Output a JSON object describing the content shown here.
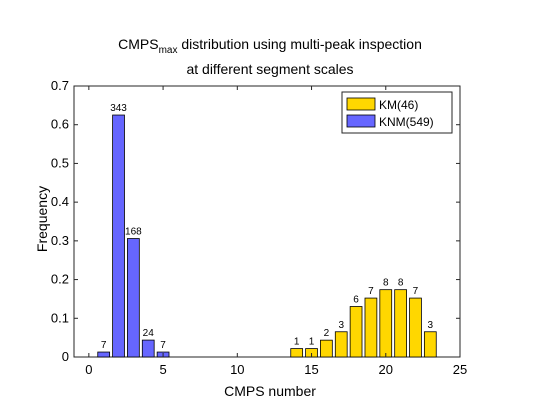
{
  "chart_data": {
    "type": "bar",
    "title_line1_main": "CMPS",
    "title_line1_sub": "max",
    "title_line1_rest": " distribution using multi-peak inspection",
    "title_line2": "at different segment scales",
    "xlabel": "CMPS number",
    "ylabel": "Frequency",
    "xlim": [
      -1,
      25
    ],
    "ylim": [
      0,
      0.7
    ],
    "xticks": [
      "0",
      "5",
      "10",
      "15",
      "20",
      "25"
    ],
    "yticks": [
      "0",
      "0.1",
      "0.2",
      "0.3",
      "0.4",
      "0.5",
      "0.6",
      "0.7"
    ],
    "xtick_values": [
      0,
      5,
      10,
      15,
      20,
      25
    ],
    "ytick_values": [
      0,
      0.1,
      0.2,
      0.3,
      0.4,
      0.5,
      0.6,
      0.7
    ],
    "grid": false,
    "legend_position": "top-right",
    "series": [
      {
        "name": "KNM(549)",
        "color": "#6666ff",
        "x": [
          1,
          2,
          3,
          4,
          5
        ],
        "values": [
          0.0128,
          0.625,
          0.306,
          0.0437,
          0.0128
        ],
        "labels": [
          "7",
          "343",
          "168",
          "24",
          "7"
        ]
      },
      {
        "name": "KM(46)",
        "color": "#ffd700",
        "x": [
          14,
          15,
          16,
          17,
          18,
          19,
          20,
          21,
          22,
          23
        ],
        "values": [
          0.0217,
          0.0217,
          0.0435,
          0.0652,
          0.1304,
          0.1522,
          0.1739,
          0.1739,
          0.1522,
          0.0652
        ],
        "labels": [
          "1",
          "1",
          "2",
          "3",
          "6",
          "7",
          "8",
          "8",
          "7",
          "3"
        ]
      }
    ],
    "legend": [
      {
        "label": "KM(46)",
        "color": "#ffd700"
      },
      {
        "label": "KNM(549)",
        "color": "#6666ff"
      }
    ]
  }
}
